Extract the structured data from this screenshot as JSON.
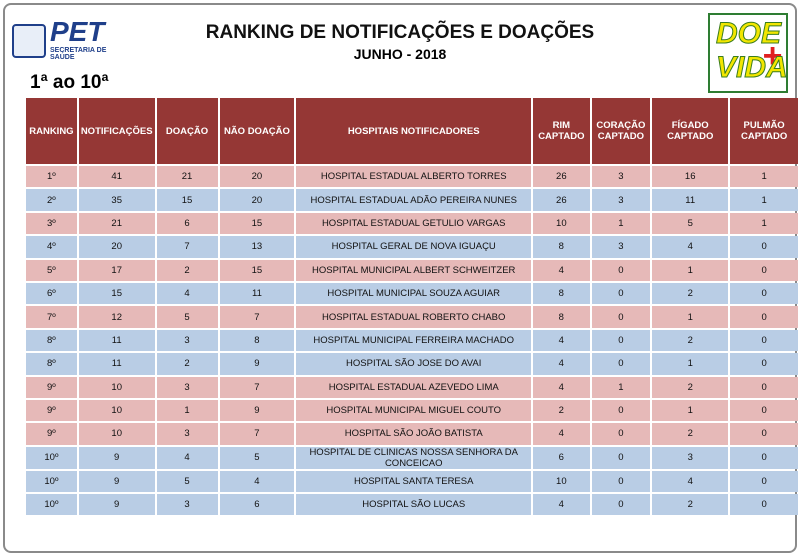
{
  "header": {
    "logo_left": {
      "name": "PET",
      "subtitle": "SECRETARIA DE SAÚDE"
    },
    "title": "RANKING DE NOTIFICAÇÕES E DOAÇÕES",
    "subtitle": "JUNHO - 2018",
    "range": "1ª ao 10ª",
    "logo_right": {
      "top": "DOE",
      "bottom": "VIDA"
    }
  },
  "table": {
    "header_color": "#953735",
    "columns": [
      "RANKING",
      "NOTIFICAÇÕES",
      "DOAÇÃO",
      "NÃO DOAÇÃO",
      "HOSPITAIS NOTIFICADORES",
      "RIM CAPTADO",
      "CORAÇÃO CAPTADO",
      "FÍGADO CAPTADO",
      "PULMÃO CAPTADO"
    ],
    "rows": [
      {
        "color": "#e6b9b8",
        "cells": [
          "1º",
          41,
          21,
          20,
          "HOSPITAL ESTADUAL  ALBERTO TORRES",
          26,
          3,
          16,
          1
        ]
      },
      {
        "color": "#b9cde5",
        "cells": [
          "2º",
          35,
          15,
          20,
          "HOSPITAL ESTADUAL ADÃO PEREIRA NUNES",
          26,
          3,
          11,
          1
        ]
      },
      {
        "color": "#e6b9b8",
        "cells": [
          "3º",
          21,
          6,
          15,
          "HOSPITAL ESTADUAL  GETULIO VARGAS",
          10,
          1,
          5,
          1
        ]
      },
      {
        "color": "#b9cde5",
        "cells": [
          "4º",
          20,
          7,
          13,
          "HOSPITAL GERAL DE NOVA IGUAÇU",
          8,
          3,
          4,
          0
        ]
      },
      {
        "color": "#e6b9b8",
        "cells": [
          "5º",
          17,
          2,
          15,
          "HOSPITAL MUNICIPAL ALBERT SCHWEITZER",
          4,
          0,
          1,
          0
        ]
      },
      {
        "color": "#b9cde5",
        "cells": [
          "6º",
          15,
          4,
          11,
          "HOSPITAL MUNICIPAL SOUZA AGUIAR",
          8,
          0,
          2,
          0
        ]
      },
      {
        "color": "#e6b9b8",
        "cells": [
          "7º",
          12,
          5,
          7,
          "HOSPITAL ESTADUAL  ROBERTO CHABO",
          8,
          0,
          1,
          0
        ]
      },
      {
        "color": "#b9cde5",
        "cells": [
          "8º",
          11,
          3,
          8,
          "HOSPITAL MUNICIPAL FERREIRA MACHADO",
          4,
          0,
          2,
          0
        ]
      },
      {
        "color": "#b9cde5",
        "cells": [
          "8º",
          11,
          2,
          9,
          "HOSPITAL SÃO JOSE DO AVAI",
          4,
          0,
          1,
          0
        ]
      },
      {
        "color": "#e6b9b8",
        "cells": [
          "9º",
          10,
          3,
          7,
          "HOSPITAL ESTADUAL  AZEVEDO LIMA",
          4,
          1,
          2,
          0
        ]
      },
      {
        "color": "#e6b9b8",
        "cells": [
          "9º",
          10,
          1,
          9,
          "HOSPITAL MUNICIPAL MIGUEL COUTO",
          2,
          0,
          1,
          0
        ]
      },
      {
        "color": "#e6b9b8",
        "cells": [
          "9º",
          10,
          3,
          7,
          "HOSPITAL SÃO JOÃO BATISTA",
          4,
          0,
          2,
          0
        ]
      },
      {
        "color": "#b9cde5",
        "cells": [
          "10º",
          9,
          4,
          5,
          "HOSPITAL DE CLINICAS NOSSA SENHORA  DA CONCEICAO",
          6,
          0,
          3,
          0
        ]
      },
      {
        "color": "#b9cde5",
        "cells": [
          "10º",
          9,
          5,
          4,
          "HOSPITAL SANTA  TERESA",
          10,
          0,
          4,
          0
        ]
      },
      {
        "color": "#b9cde5",
        "cells": [
          "10º",
          9,
          3,
          6,
          "HOSPITAL SÃO LUCAS",
          4,
          0,
          2,
          0
        ]
      }
    ]
  }
}
